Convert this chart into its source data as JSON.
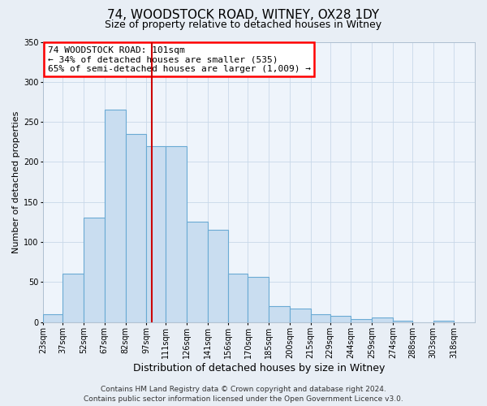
{
  "title": "74, WOODSTOCK ROAD, WITNEY, OX28 1DY",
  "subtitle": "Size of property relative to detached houses in Witney",
  "xlabel": "Distribution of detached houses by size in Witney",
  "ylabel": "Number of detached properties",
  "bin_labels": [
    "23sqm",
    "37sqm",
    "52sqm",
    "67sqm",
    "82sqm",
    "97sqm",
    "111sqm",
    "126sqm",
    "141sqm",
    "156sqm",
    "170sqm",
    "185sqm",
    "200sqm",
    "215sqm",
    "229sqm",
    "244sqm",
    "259sqm",
    "274sqm",
    "288sqm",
    "303sqm",
    "318sqm"
  ],
  "bin_edges": [
    23,
    37,
    52,
    67,
    82,
    97,
    111,
    126,
    141,
    156,
    170,
    185,
    200,
    215,
    229,
    244,
    259,
    274,
    288,
    303,
    318,
    333
  ],
  "values": [
    10,
    60,
    130,
    265,
    235,
    220,
    220,
    125,
    115,
    60,
    56,
    20,
    17,
    10,
    8,
    4,
    6,
    2,
    0,
    2,
    0
  ],
  "bar_color": "#c9ddf0",
  "bar_edge_color": "#6aaad4",
  "vline_x": 101,
  "vline_color": "#cc0000",
  "annotation_line1": "74 WOODSTOCK ROAD: 101sqm",
  "annotation_line2": "← 34% of detached houses are smaller (535)",
  "annotation_line3": "65% of semi-detached houses are larger (1,009) →",
  "ylim_max": 350,
  "yticks": [
    0,
    50,
    100,
    150,
    200,
    250,
    300,
    350
  ],
  "footer_line1": "Contains HM Land Registry data © Crown copyright and database right 2024.",
  "footer_line2": "Contains public sector information licensed under the Open Government Licence v3.0.",
  "bg_color": "#e8eef5",
  "plot_bg_color": "#eef4fb",
  "grid_color": "#c8d8e8",
  "title_fontsize": 11,
  "subtitle_fontsize": 9,
  "xlabel_fontsize": 9,
  "ylabel_fontsize": 8,
  "tick_fontsize": 7,
  "annotation_fontsize": 8,
  "footer_fontsize": 6.5
}
